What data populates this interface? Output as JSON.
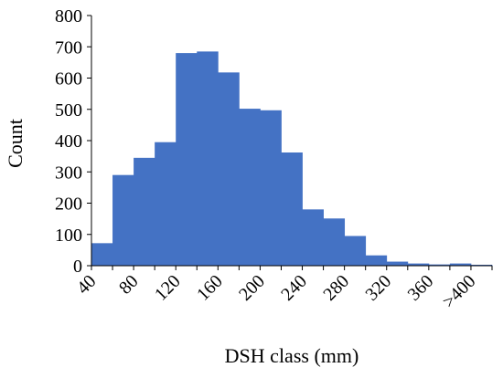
{
  "chart_data": {
    "type": "bar",
    "title": "",
    "xlabel": "DSH class (mm)",
    "ylabel": "Count",
    "categories": [
      "40",
      "60",
      "80",
      "100",
      "120",
      "140",
      "160",
      "180",
      "200",
      "220",
      "240",
      "260",
      "280",
      "300",
      "320",
      "340",
      "360",
      "380",
      ">400"
    ],
    "x_tick_labels": [
      "40",
      "80",
      "120",
      "160",
      "200",
      "240",
      "280",
      "320",
      "360",
      ">400"
    ],
    "values": [
      72,
      290,
      345,
      395,
      680,
      685,
      618,
      502,
      497,
      362,
      180,
      151,
      95,
      33,
      13,
      7,
      4,
      7,
      3
    ],
    "ylim": [
      0,
      800
    ],
    "y_ticks": [
      0,
      100,
      200,
      300,
      400,
      500,
      600,
      700,
      800
    ],
    "bar_color": "#4472C4",
    "gap": "none",
    "grid": false,
    "legend": "none"
  }
}
